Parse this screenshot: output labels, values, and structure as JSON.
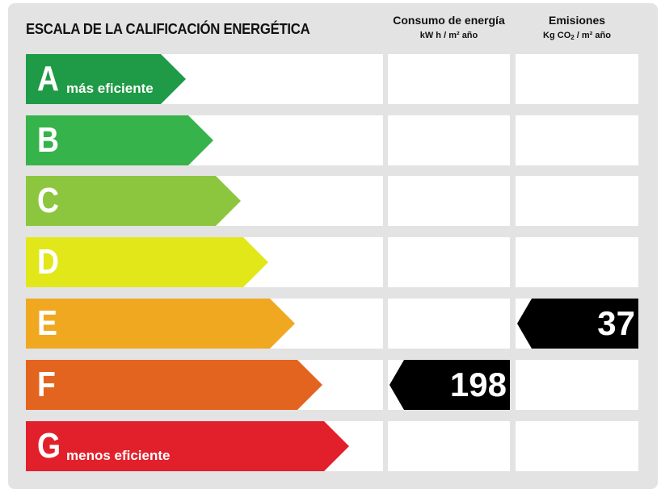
{
  "title": "ESCALA DE LA CALIFICACIÓN ENERGÉTICA",
  "consumption_header": {
    "title": "Consumo de energía",
    "unit": "kW h / m² año"
  },
  "emissions_header": {
    "title": "Emisiones",
    "unit_pre": "Kg CO",
    "unit_sub": "2",
    "unit_post": " / m² año"
  },
  "ratings": [
    {
      "letter": "A",
      "label": "más eficiente",
      "color": "#1f9a46"
    },
    {
      "letter": "B",
      "label": "",
      "color": "#36b34a"
    },
    {
      "letter": "C",
      "label": "",
      "color": "#8cc63f"
    },
    {
      "letter": "D",
      "label": "",
      "color": "#e2e71a"
    },
    {
      "letter": "E",
      "label": "",
      "color": "#f0a821"
    },
    {
      "letter": "F",
      "label": "",
      "color": "#e3641f"
    },
    {
      "letter": "G",
      "label": "menos eficiente",
      "color": "#e2202b"
    }
  ],
  "consumption": {
    "rating": "F",
    "value": "198"
  },
  "emissions": {
    "rating": "E",
    "value": "37"
  }
}
